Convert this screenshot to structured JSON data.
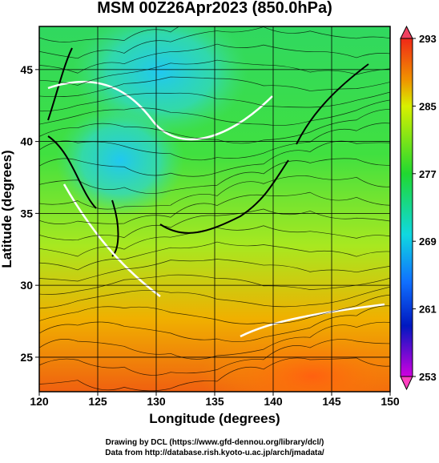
{
  "chart_data": {
    "type": "map",
    "title": "MSM 00Z26Apr2023 (850.0hPa)",
    "xlabel": "Longitude (degrees)",
    "ylabel": "Latitude  (degrees)",
    "xlim": [
      120,
      150
    ],
    "ylim": [
      22.6,
      48
    ],
    "xticks": [
      120,
      125,
      130,
      135,
      140,
      145,
      150
    ],
    "yticks": [
      25,
      30,
      35,
      40,
      45
    ],
    "grid": true,
    "colorbar": {
      "lim": [
        253,
        293
      ],
      "ticks": [
        253,
        261,
        269,
        277,
        285,
        293
      ]
    }
  },
  "footer": {
    "line1": "Drawing by DCL (https://www.gfd-dennou.org/library/dcl/)",
    "line2": "Data from http://database.rish.kyoto-u.ac.jp/arch/jmadata/"
  }
}
